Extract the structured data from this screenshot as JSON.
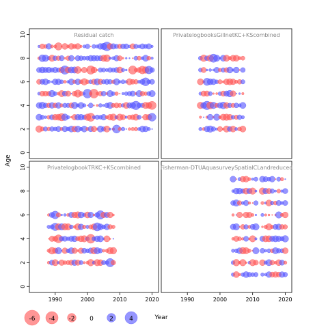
{
  "chart_data": {
    "type": "scatter",
    "subtype": "residual-bubble-grid",
    "xlabel": "Year",
    "ylabel": "Age",
    "xlim": [
      1982,
      2022
    ],
    "ylim": [
      -0.5,
      10.5
    ],
    "x_ticks": [
      1990,
      2000,
      2010,
      2020
    ],
    "y_ticks": [
      0,
      2,
      4,
      6,
      8,
      10
    ],
    "grid": false,
    "colors": {
      "negative": "#ff5555",
      "positive": "#5555ff"
    },
    "legend": {
      "placement": "bottom-left",
      "entries": [
        {
          "label": "-6",
          "value": -6
        },
        {
          "label": "-4",
          "value": -4
        },
        {
          "label": "-2",
          "value": -2
        },
        {
          "label": "0",
          "value": 0
        },
        {
          "label": "2",
          "value": 2
        },
        {
          "label": "4",
          "value": 4
        }
      ]
    },
    "panels": [
      {
        "title": "Residual catch",
        "years": [
          1985,
          2020
        ],
        "ages": [
          2,
          3,
          4,
          5,
          6,
          7,
          8,
          9
        ]
      },
      {
        "title": "PrivatelogbooksGillnetKC+KScombined",
        "years": [
          1994,
          2007
        ],
        "ages": [
          2,
          3,
          4,
          5,
          6,
          7,
          8
        ]
      },
      {
        "title": "PrivatelogbookTRKC+KScombined",
        "years": [
          1988,
          2008
        ],
        "ages": [
          2,
          3,
          4,
          5,
          6
        ]
      },
      {
        "title": "Fisherman-DTUAquasurveySpatialCLandreduced",
        "years": [
          2004,
          2020
        ],
        "ages": [
          1,
          2,
          3,
          4,
          5,
          6,
          7,
          8,
          9
        ],
        "gap": [
          2011,
          2013
        ]
      }
    ]
  }
}
